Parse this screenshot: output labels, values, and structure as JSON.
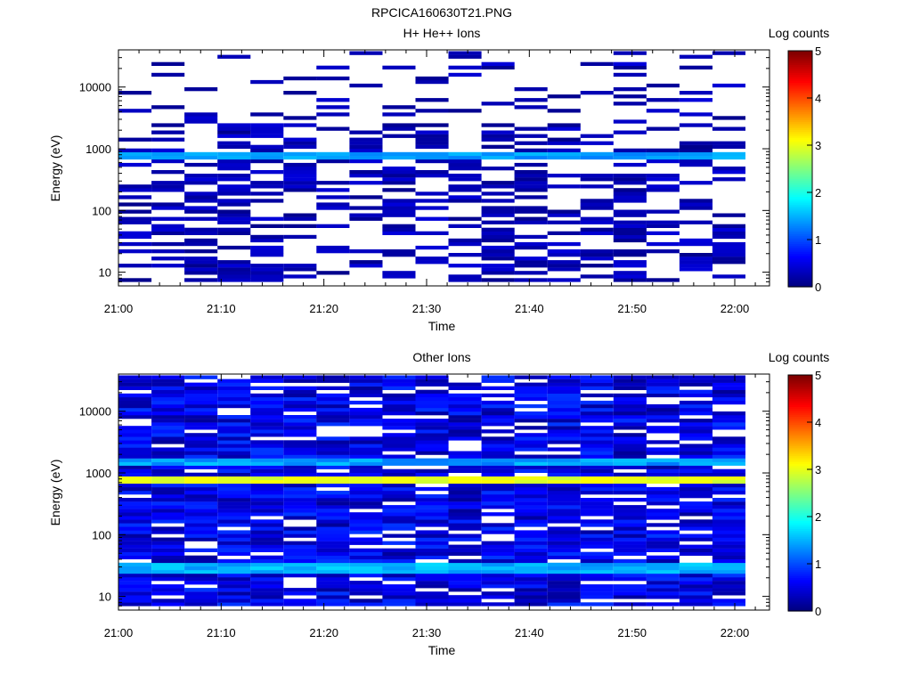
{
  "figure_title": "RPCICA160630T21.PNG",
  "colorbar_ticks": [
    "0",
    "1",
    "2",
    "3",
    "4",
    "5"
  ],
  "chart_data": [
    {
      "type": "heatmap",
      "title": "H+ He++ Ions",
      "xlabel": "Time",
      "ylabel": "Energy (eV)",
      "colorbar_label": "Log counts",
      "x_tick_labels": [
        "21:00",
        "21:10",
        "21:20",
        "21:30",
        "21:40",
        "21:50",
        "22:00"
      ],
      "y_tick_labels": [
        "10",
        "100",
        "1000",
        "10000"
      ],
      "y_scale": "log",
      "ylim": [
        6,
        40000
      ],
      "xlim": [
        "21:00",
        "22:00"
      ],
      "zlim": [
        0,
        5
      ],
      "time_bins": 19,
      "energy_bins": 64,
      "dominant_band_eV": [
        650,
        900
      ],
      "band_level": 1.4,
      "background_level": 0.3,
      "fill_fraction": 0.45
    },
    {
      "type": "heatmap",
      "title": "Other Ions",
      "xlabel": "Time",
      "ylabel": "Energy (eV)",
      "colorbar_label": "Log counts",
      "x_tick_labels": [
        "21:00",
        "21:10",
        "21:20",
        "21:30",
        "21:40",
        "21:50",
        "22:00"
      ],
      "y_tick_labels": [
        "10",
        "100",
        "1000",
        "10000"
      ],
      "y_scale": "log",
      "ylim": [
        6,
        40000
      ],
      "xlim": [
        "21:00",
        "22:00"
      ],
      "zlim": [
        0,
        5
      ],
      "time_bins": 19,
      "energy_bins": 64,
      "dominant_band_eV": [
        650,
        900
      ],
      "band_level": 3.0,
      "secondary_bands_eV": [
        [
          1400,
          1650
        ],
        [
          22,
          35
        ]
      ],
      "secondary_levels": [
        1.4,
        1.5
      ],
      "background_level": 0.6,
      "fill_fraction": 0.85
    }
  ]
}
